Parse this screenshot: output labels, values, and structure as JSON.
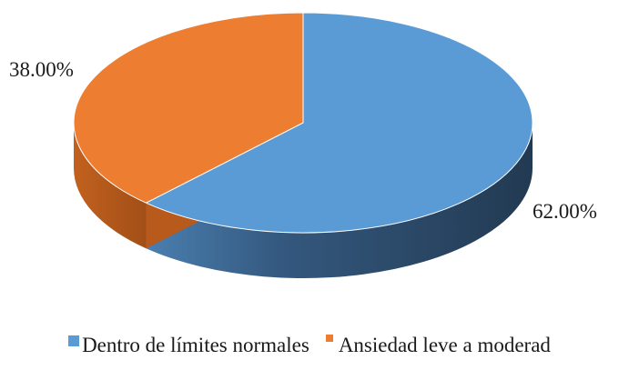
{
  "chart_data": {
    "type": "pie",
    "style": "3d",
    "title": "",
    "categories": [
      "Dentro de límites normales",
      "Ansiedad leve a moderad"
    ],
    "values": [
      62.0,
      38.0
    ],
    "data_labels": [
      "62.00%",
      "38.00%"
    ],
    "colors": [
      "#5b9bd5",
      "#ed7d31"
    ],
    "legend_position": "bottom"
  }
}
